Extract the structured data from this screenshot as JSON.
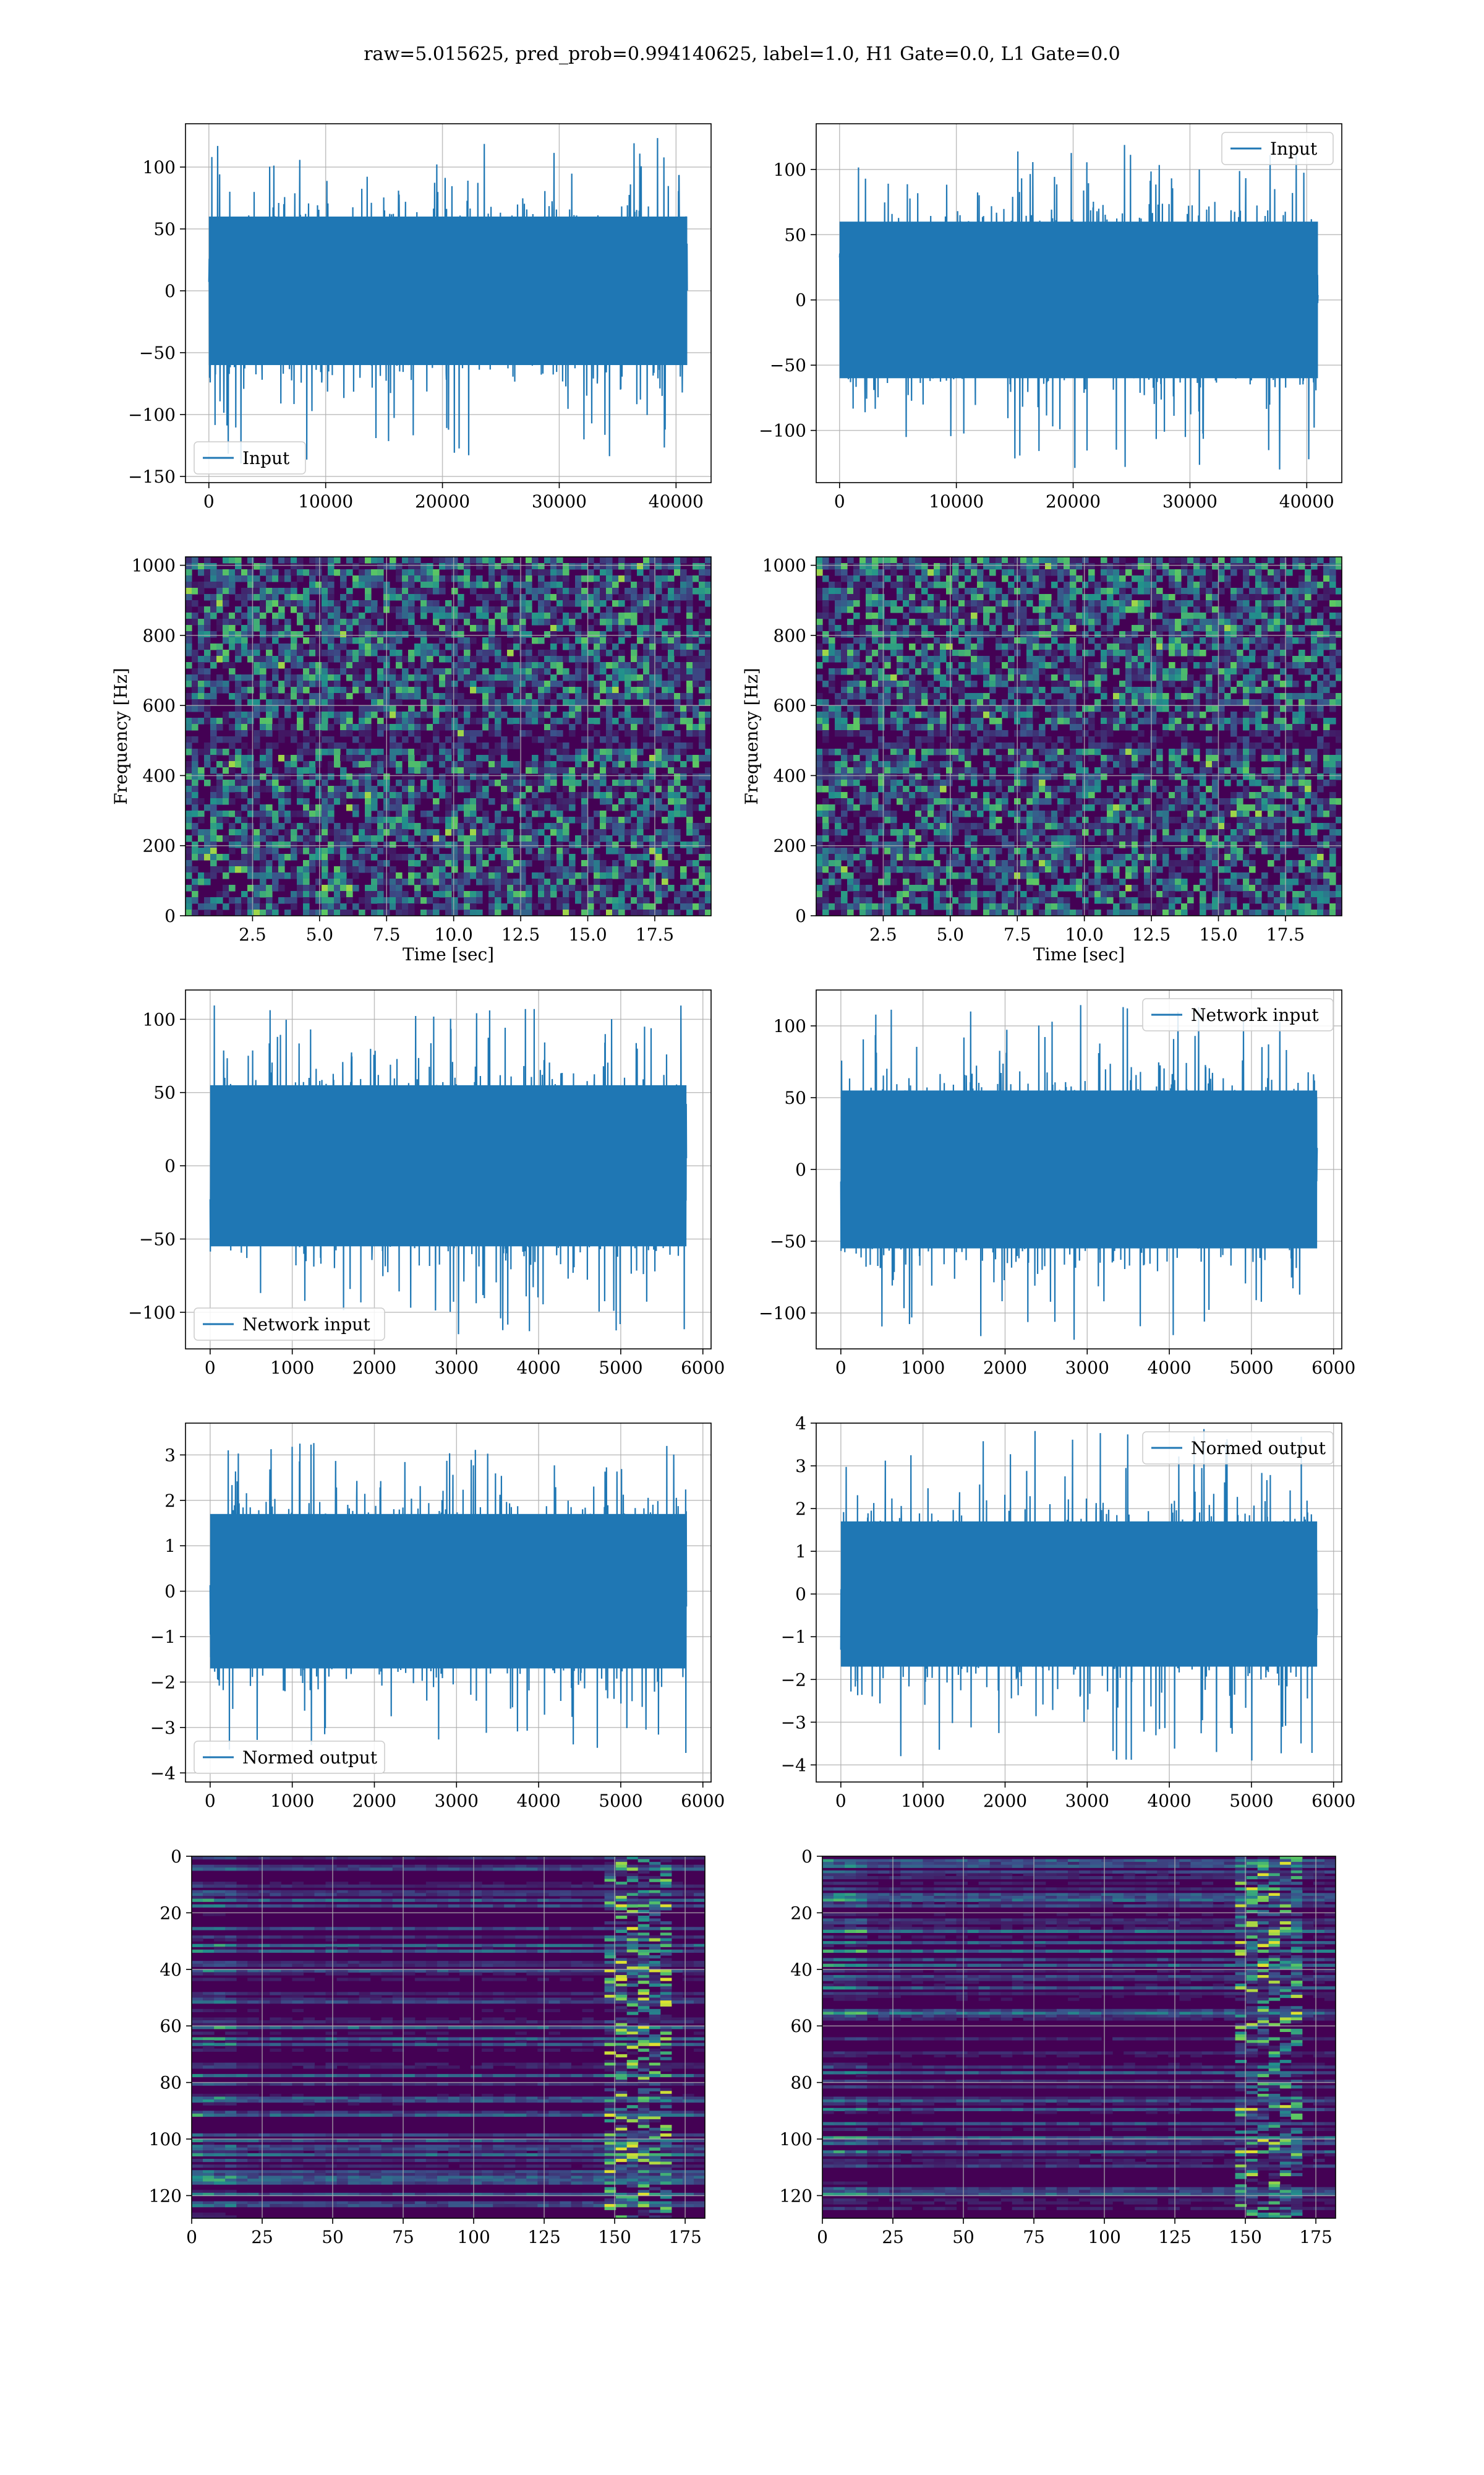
{
  "figure": {
    "suptitle": "raw=5.015625, pred_prob=0.994140625, label=1.0, H1 Gate=0.0, L1 Gate=0.0"
  },
  "colors": {
    "line": "#1f77b4",
    "grid": "#b0b0b0",
    "heat_low": "#440154",
    "heat_mid": "#21918c",
    "heat_high": "#fde725"
  },
  "chart_data": [
    {
      "id": "input-left",
      "type": "line",
      "legend": [
        "Input"
      ],
      "legend_loc": "lower-left",
      "series": [
        {
          "name": "Input",
          "n": 40960,
          "amplitude_typical": 60,
          "min": -140,
          "max": 125
        }
      ],
      "xlim": [
        -2000,
        43000
      ],
      "ylim": [
        -155,
        135
      ],
      "xticks": [
        0,
        10000,
        20000,
        30000,
        40000
      ],
      "yticks": [
        -150,
        -100,
        -50,
        0,
        50,
        100
      ],
      "xlabel": "",
      "ylabel": "",
      "grid": true
    },
    {
      "id": "input-right",
      "type": "line",
      "legend": [
        "Input"
      ],
      "legend_loc": "upper-right",
      "series": [
        {
          "name": "Input",
          "n": 40960,
          "amplitude_typical": 60,
          "min": -130,
          "max": 120
        }
      ],
      "xlim": [
        -2000,
        43000
      ],
      "ylim": [
        -140,
        135
      ],
      "xticks": [
        0,
        10000,
        20000,
        30000,
        40000
      ],
      "yticks": [
        -100,
        -50,
        0,
        50,
        100
      ],
      "xlabel": "",
      "ylabel": "",
      "grid": true
    },
    {
      "id": "spectrogram-left",
      "type": "heatmap",
      "xlim": [
        0,
        19.6
      ],
      "ylim": [
        0,
        1024
      ],
      "xticks": [
        2.5,
        5.0,
        7.5,
        10.0,
        12.5,
        15.0,
        17.5
      ],
      "yticks": [
        0,
        200,
        400,
        600,
        800,
        1000
      ],
      "xlabel": "Time [sec]",
      "ylabel": "Frequency [Hz]",
      "grid": true
    },
    {
      "id": "spectrogram-right",
      "type": "heatmap",
      "xlim": [
        0,
        19.6
      ],
      "ylim": [
        0,
        1024
      ],
      "xticks": [
        2.5,
        5.0,
        7.5,
        10.0,
        12.5,
        15.0,
        17.5
      ],
      "yticks": [
        0,
        200,
        400,
        600,
        800,
        1000
      ],
      "xlabel": "Time [sec]",
      "ylabel": "Frequency [Hz]",
      "grid": true
    },
    {
      "id": "network-input-left",
      "type": "line",
      "legend": [
        "Network input"
      ],
      "legend_loc": "lower-left",
      "series": [
        {
          "name": "Network input",
          "n": 5800,
          "amplitude_typical": 55,
          "min": -115,
          "max": 110
        }
      ],
      "xlim": [
        -300,
        6100
      ],
      "ylim": [
        -125,
        120
      ],
      "xticks": [
        0,
        1000,
        2000,
        3000,
        4000,
        5000,
        6000
      ],
      "yticks": [
        -100,
        -50,
        0,
        50,
        100
      ],
      "xlabel": "",
      "ylabel": "",
      "grid": true
    },
    {
      "id": "network-input-right",
      "type": "line",
      "legend": [
        "Network input"
      ],
      "legend_loc": "upper-right",
      "series": [
        {
          "name": "Network input",
          "n": 5800,
          "amplitude_typical": 55,
          "min": -120,
          "max": 115
        }
      ],
      "xlim": [
        -300,
        6100
      ],
      "ylim": [
        -125,
        125
      ],
      "xticks": [
        0,
        1000,
        2000,
        3000,
        4000,
        5000,
        6000
      ],
      "yticks": [
        -100,
        -50,
        0,
        50,
        100
      ],
      "xlabel": "",
      "ylabel": "",
      "grid": true
    },
    {
      "id": "normed-output-left",
      "type": "line",
      "legend": [
        "Normed output"
      ],
      "legend_loc": "lower-left",
      "series": [
        {
          "name": "Normed output",
          "n": 5800,
          "amplitude_typical": 1.7,
          "min": -3.6,
          "max": 3.3
        }
      ],
      "xlim": [
        -300,
        6100
      ],
      "ylim": [
        -4.2,
        3.7
      ],
      "xticks": [
        0,
        1000,
        2000,
        3000,
        4000,
        5000,
        6000
      ],
      "yticks": [
        -4,
        -3,
        -2,
        -1,
        0,
        1,
        2,
        3
      ],
      "xlabel": "",
      "ylabel": "",
      "grid": true
    },
    {
      "id": "normed-output-right",
      "type": "line",
      "legend": [
        "Normed output"
      ],
      "legend_loc": "upper-right",
      "series": [
        {
          "name": "Normed output",
          "n": 5800,
          "amplitude_typical": 1.7,
          "min": -3.9,
          "max": 3.9
        }
      ],
      "xlim": [
        -300,
        6100
      ],
      "ylim": [
        -4.4,
        4.0
      ],
      "xticks": [
        0,
        1000,
        2000,
        3000,
        4000,
        5000,
        6000
      ],
      "yticks": [
        -4,
        -3,
        -2,
        -1,
        0,
        1,
        2,
        3,
        4
      ],
      "xlabel": "",
      "ylabel": "",
      "grid": true
    },
    {
      "id": "feature-map-left",
      "type": "heatmap",
      "xlim": [
        0,
        182
      ],
      "ylim": [
        128,
        0
      ],
      "xticks": [
        0,
        25,
        50,
        75,
        100,
        125,
        150,
        175
      ],
      "yticks": [
        0,
        20,
        40,
        60,
        80,
        100,
        120
      ],
      "xlabel": "",
      "ylabel": "",
      "grid": true
    },
    {
      "id": "feature-map-right",
      "type": "heatmap",
      "xlim": [
        0,
        182
      ],
      "ylim": [
        128,
        0
      ],
      "xticks": [
        0,
        25,
        50,
        75,
        100,
        125,
        150,
        175
      ],
      "yticks": [
        0,
        20,
        40,
        60,
        80,
        100,
        120
      ],
      "xlabel": "",
      "ylabel": "",
      "grid": true
    }
  ]
}
